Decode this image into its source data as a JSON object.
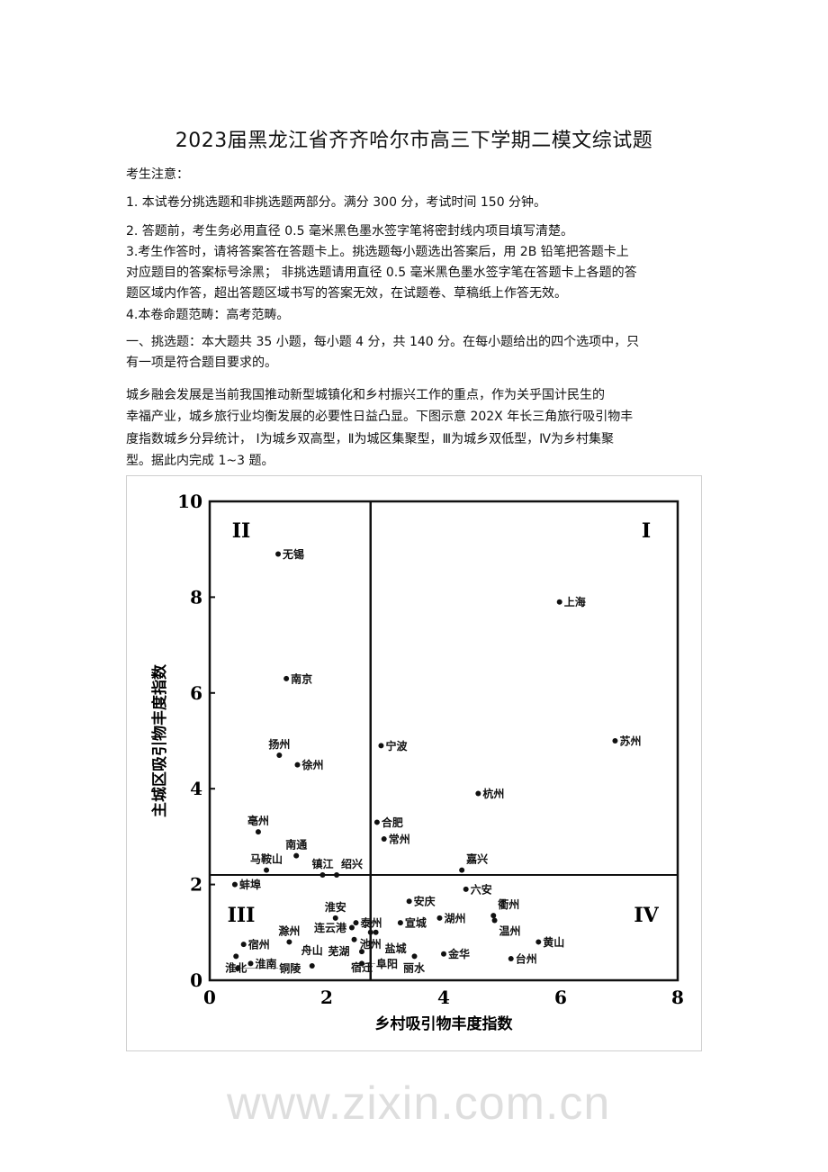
{
  "document": {
    "title": "2023届黑龙江省齐齐哈尔市高三下学期二模文综试题",
    "notice_heading": "考生注意：",
    "lines": [
      "1.   本试卷分挑选题和非挑选题两部分。满分 300 分，考试时间 150 分钟。",
      "2.   答题前，考生务必用直径 0.5 毫米黑色墨水签字笔将密封线内项目填写清楚。",
      "3.考生作答时，请将答案答在答题卡上。挑选题每小题选出答案后，用 2B 铅笔把答题卡上",
      "对应题目的答案标号涂黑；  非挑选题请用直径 0.5 毫米黑色墨水签字笔在答题卡上各题的答",
      "题区域内作答，超出答题区域书写的答案无效，在试题卷、草稿纸上作答无效。",
      "4.本卷命题范畴：高考范畴。",
      "一、挑选题：本大题共 35 小题，每小题 4 分，共 140 分。在每小题给出的四个选项中，只",
      "有一项是符合题目要求的。",
      "        城乡融会发展是当前我国推动新型城镇化和乡村振兴工作的重点，作为关乎国计民生的",
      "幸福产业，城乡旅行业均衡发展的必要性日益凸显。下图示意 202X 年长三角旅行吸引物丰",
      "度指数城乡分异统计，  Ⅰ为城乡双高型，Ⅱ为城区集聚型，Ⅲ为城乡双低型，Ⅳ为乡村集聚",
      "型。据此内完成 1~3 题。"
    ],
    "watermark": "www.zixin.com.cn"
  },
  "chart_data": {
    "type": "scatter",
    "xlabel": "乡村吸引物丰度指数",
    "ylabel": "主城区吸引物丰度指数",
    "xlim": [
      0,
      8
    ],
    "ylim": [
      0,
      10
    ],
    "xticks": [
      "0",
      "2",
      "4",
      "6",
      "8"
    ],
    "yticks": [
      "0",
      "2",
      "4",
      "6",
      "8",
      "10"
    ],
    "divider_x": 2.75,
    "divider_y": 2.2,
    "quadrants": [
      "I",
      "II",
      "III",
      "IV"
    ],
    "grid": false,
    "points": [
      {
        "name": "无锡",
        "x": 1.17,
        "y": 8.9,
        "pos": "right"
      },
      {
        "name": "上海",
        "x": 5.98,
        "y": 7.9,
        "pos": "right"
      },
      {
        "name": "南京",
        "x": 1.31,
        "y": 6.3,
        "pos": "right"
      },
      {
        "name": "宁波",
        "x": 2.93,
        "y": 4.9,
        "pos": "right"
      },
      {
        "name": "苏州",
        "x": 6.93,
        "y": 5.0,
        "pos": "right"
      },
      {
        "name": "扬州",
        "x": 1.19,
        "y": 4.7,
        "pos": "above"
      },
      {
        "name": "徐州",
        "x": 1.5,
        "y": 4.5,
        "pos": "right"
      },
      {
        "name": "杭州",
        "x": 4.59,
        "y": 3.9,
        "pos": "right"
      },
      {
        "name": "亳州",
        "x": 0.83,
        "y": 3.1,
        "pos": "above"
      },
      {
        "name": "合肥",
        "x": 2.86,
        "y": 3.3,
        "pos": "right"
      },
      {
        "name": "常州",
        "x": 2.98,
        "y": 2.95,
        "pos": "right"
      },
      {
        "name": "南通",
        "x": 1.48,
        "y": 2.6,
        "pos": "above"
      },
      {
        "name": "马鞍山",
        "x": 0.97,
        "y": 2.3,
        "pos": "above"
      },
      {
        "name": "镇江",
        "x": 1.93,
        "y": 2.2,
        "pos": "above"
      },
      {
        "name": "绍兴",
        "x": 2.17,
        "y": 2.2,
        "pos": "aboveright"
      },
      {
        "name": "嘉兴",
        "x": 4.31,
        "y": 2.3,
        "pos": "aboveright"
      },
      {
        "name": "蚌埠",
        "x": 0.43,
        "y": 2.0,
        "pos": "right"
      },
      {
        "name": "六安",
        "x": 4.38,
        "y": 1.9,
        "pos": "right"
      },
      {
        "name": "安庆",
        "x": 3.41,
        "y": 1.65,
        "pos": "right"
      },
      {
        "name": "淮安",
        "x": 2.15,
        "y": 1.3,
        "pos": "above"
      },
      {
        "name": "泰州",
        "x": 2.5,
        "y": 1.2,
        "pos": "above"
      },
      {
        "name": "池州",
        "x": 2.75,
        "y": 1.0,
        "pos": "aboveright"
      },
      {
        "name": "宣城",
        "x": 3.26,
        "y": 1.2,
        "pos": "right"
      },
      {
        "name": "湖州",
        "x": 3.93,
        "y": 1.3,
        "pos": "right"
      },
      {
        "name": "衢州",
        "x": 4.85,
        "y": 1.35,
        "pos": "aboveright"
      },
      {
        "name": "温州",
        "x": 4.87,
        "y": 1.25,
        "pos": "belowright"
      },
      {
        "name": "连云港",
        "x": 2.43,
        "y": 1.1,
        "pos": "left"
      },
      {
        "name": "盐城",
        "x": 2.84,
        "y": 1.0,
        "pos": "belowright"
      },
      {
        "name": "宿州",
        "x": 0.58,
        "y": 0.75,
        "pos": "aboveright"
      },
      {
        "name": "淮北",
        "x": 0.45,
        "y": 0.5,
        "pos": "aboveleft"
      },
      {
        "name": "芜湖",
        "x": 2.47,
        "y": 0.85,
        "pos": "left"
      },
      {
        "name": "滁州",
        "x": 1.36,
        "y": 0.8,
        "pos": "aboveright"
      },
      {
        "name": "宿迁",
        "x": 2.6,
        "y": 0.6,
        "pos": "right"
      },
      {
        "name": "黄山",
        "x": 5.62,
        "y": 0.8,
        "pos": "right"
      },
      {
        "name": "金华",
        "x": 4.0,
        "y": 0.55,
        "pos": "right"
      },
      {
        "name": "丽水",
        "x": 3.5,
        "y": 0.5,
        "pos": "below"
      },
      {
        "name": "淮南",
        "x": 0.7,
        "y": 0.35,
        "pos": "right"
      },
      {
        "name": "铜陵",
        "x": 0.48,
        "y": 0.25,
        "pos": "left"
      },
      {
        "name": "台州",
        "x": 5.15,
        "y": 0.45,
        "pos": "belowright"
      },
      {
        "name": "舟山",
        "x": 1.75,
        "y": 0.3,
        "pos": "right"
      },
      {
        "name": "阜阳",
        "x": 2.6,
        "y": 0.35,
        "pos": "belowright"
      }
    ]
  }
}
